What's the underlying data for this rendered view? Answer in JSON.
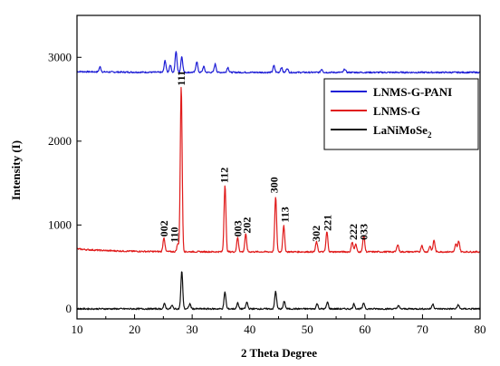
{
  "chart_data": {
    "type": "line",
    "xlabel": "2 Theta Degree",
    "ylabel": "Intensity (I)",
    "xlim": [
      10,
      80
    ],
    "ylim": [
      -120,
      3500
    ],
    "xticks": [
      "10",
      "20",
      "30",
      "40",
      "50",
      "60",
      "70",
      "80"
    ],
    "yticks": [
      "0",
      "1000",
      "2000",
      "3000"
    ],
    "grid": false,
    "legend_position": "top-right",
    "series": [
      {
        "name": "LNMS-G-PANI",
        "color": "#1f1fd6",
        "baseline": 2820,
        "peaks": [
          {
            "x": 14.0,
            "h": 60
          },
          {
            "x": 25.3,
            "h": 140
          },
          {
            "x": 26.2,
            "h": 90
          },
          {
            "x": 27.2,
            "h": 250
          },
          {
            "x": 28.2,
            "h": 190
          },
          {
            "x": 30.8,
            "h": 130
          },
          {
            "x": 32.0,
            "h": 70
          },
          {
            "x": 34.0,
            "h": 100
          },
          {
            "x": 36.2,
            "h": 60
          },
          {
            "x": 44.2,
            "h": 80
          },
          {
            "x": 45.5,
            "h": 60
          },
          {
            "x": 46.5,
            "h": 50
          },
          {
            "x": 52.5,
            "h": 40
          },
          {
            "x": 56.5,
            "h": 40
          }
        ]
      },
      {
        "name": "LNMS-G",
        "color": "#e01b1b",
        "baseline": 680,
        "peaks": [
          {
            "x": 25.1,
            "h": 170
          },
          {
            "x": 27.5,
            "h": 90
          },
          {
            "x": 28.1,
            "h": 1980
          },
          {
            "x": 35.7,
            "h": 800
          },
          {
            "x": 37.9,
            "h": 170
          },
          {
            "x": 39.3,
            "h": 210
          },
          {
            "x": 44.5,
            "h": 660
          },
          {
            "x": 45.9,
            "h": 310
          },
          {
            "x": 51.6,
            "h": 120
          },
          {
            "x": 53.4,
            "h": 240
          },
          {
            "x": 57.8,
            "h": 120
          },
          {
            "x": 58.4,
            "h": 90
          },
          {
            "x": 59.8,
            "h": 200
          },
          {
            "x": 65.7,
            "h": 90
          },
          {
            "x": 69.9,
            "h": 80
          },
          {
            "x": 71.3,
            "h": 70
          },
          {
            "x": 72.0,
            "h": 140
          },
          {
            "x": 75.8,
            "h": 90
          },
          {
            "x": 76.3,
            "h": 130
          }
        ]
      },
      {
        "name": "LaNiMoSe2",
        "color": "#111111",
        "baseline": 0,
        "peaks": [
          {
            "x": 25.2,
            "h": 60
          },
          {
            "x": 26.5,
            "h": 40
          },
          {
            "x": 28.2,
            "h": 450
          },
          {
            "x": 29.6,
            "h": 60
          },
          {
            "x": 35.7,
            "h": 200
          },
          {
            "x": 37.9,
            "h": 70
          },
          {
            "x": 39.5,
            "h": 80
          },
          {
            "x": 44.5,
            "h": 210
          },
          {
            "x": 46.0,
            "h": 90
          },
          {
            "x": 51.7,
            "h": 60
          },
          {
            "x": 53.5,
            "h": 80
          },
          {
            "x": 58.1,
            "h": 60
          },
          {
            "x": 59.8,
            "h": 70
          },
          {
            "x": 65.8,
            "h": 40
          },
          {
            "x": 71.8,
            "h": 60
          },
          {
            "x": 76.2,
            "h": 50
          }
        ]
      }
    ],
    "annotations": [
      {
        "text": "002",
        "x": 25.1,
        "y": 860
      },
      {
        "text": "110",
        "x": 26.9,
        "y": 790
      },
      {
        "text": "111",
        "x": 28.1,
        "y": 2660
      },
      {
        "text": "112",
        "x": 35.6,
        "y": 1500
      },
      {
        "text": "003",
        "x": 37.9,
        "y": 860
      },
      {
        "text": "202",
        "x": 39.5,
        "y": 900
      },
      {
        "text": "300",
        "x": 44.2,
        "y": 1380
      },
      {
        "text": "113",
        "x": 46.1,
        "y": 1030
      },
      {
        "text": "302",
        "x": 51.5,
        "y": 800
      },
      {
        "text": "221",
        "x": 53.5,
        "y": 930
      },
      {
        "text": "222",
        "x": 58.0,
        "y": 820
      },
      {
        "text": "033",
        "x": 59.8,
        "y": 820
      }
    ]
  }
}
